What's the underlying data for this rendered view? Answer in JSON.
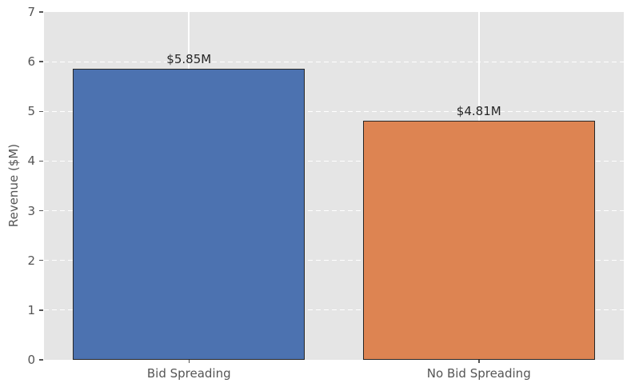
{
  "chart_data": {
    "type": "bar",
    "title": "",
    "xlabel": "",
    "ylabel": "Revenue ($M)",
    "categories": [
      "Bid Spreading",
      "No Bid Spreading"
    ],
    "values": [
      5.85,
      4.81
    ],
    "value_labels": [
      "$5.85M",
      "$4.81M"
    ],
    "series": [
      {
        "name": "Revenue",
        "values": [
          5.85,
          4.81
        ]
      }
    ],
    "ylim": [
      0,
      7
    ],
    "yticks": [
      0,
      1,
      2,
      3,
      4,
      5,
      6,
      7
    ],
    "legend": "none",
    "grid": "horizontal-dashed-and-vertical-solid-white",
    "colors": {
      "bar_fills": [
        "#4C72B0",
        "#DD8452"
      ],
      "bar_edge": "#262626",
      "plot_background": "#E5E5E5",
      "figure_background": "#FFFFFF",
      "gridline": "#FFFFFF",
      "tick_label": "#555555",
      "value_label": "#262626"
    }
  }
}
